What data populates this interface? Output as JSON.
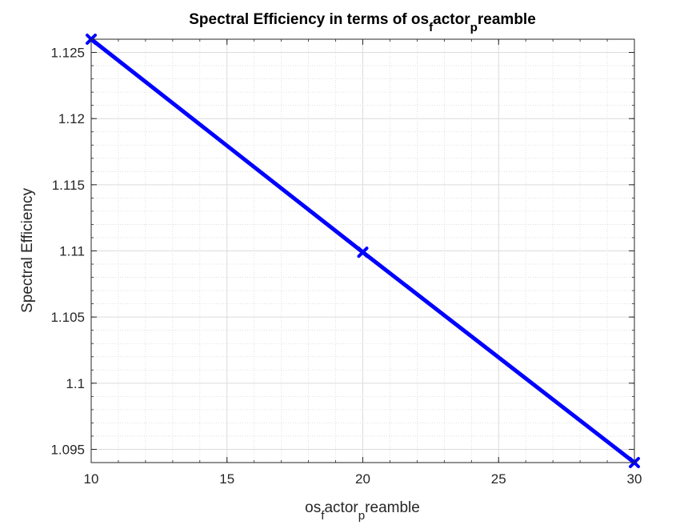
{
  "chart_data": {
    "type": "line",
    "title": {
      "parts": [
        {
          "text": "Spectral Efficiency in terms of os"
        },
        {
          "text": "f",
          "sub": true
        },
        {
          "text": "actor"
        },
        {
          "text": "p",
          "sub": true
        },
        {
          "text": "reamble"
        }
      ]
    },
    "xlabel": {
      "parts": [
        {
          "text": "os"
        },
        {
          "text": "f",
          "sub": true
        },
        {
          "text": "actor"
        },
        {
          "text": "p",
          "sub": true
        },
        {
          "text": "reamble"
        }
      ]
    },
    "ylabel": "Spectral Efficiency",
    "xlim": [
      10,
      30
    ],
    "ylim": [
      1.094,
      1.126
    ],
    "x_ticks": [
      10,
      15,
      20,
      25,
      30
    ],
    "x_tick_labels": [
      "10",
      "15",
      "20",
      "25",
      "30"
    ],
    "y_ticks": [
      1.095,
      1.1,
      1.105,
      1.11,
      1.115,
      1.12,
      1.125
    ],
    "y_tick_labels": [
      "1.095",
      "1.1",
      "1.105",
      "1.11",
      "1.115",
      "1.12",
      "1.125"
    ],
    "grid": true,
    "minor_grid": true,
    "series": [
      {
        "x": [
          10,
          20,
          30
        ],
        "y": [
          1.126,
          1.1099,
          1.094
        ],
        "color": "#0000ff",
        "marker": "x"
      }
    ]
  }
}
